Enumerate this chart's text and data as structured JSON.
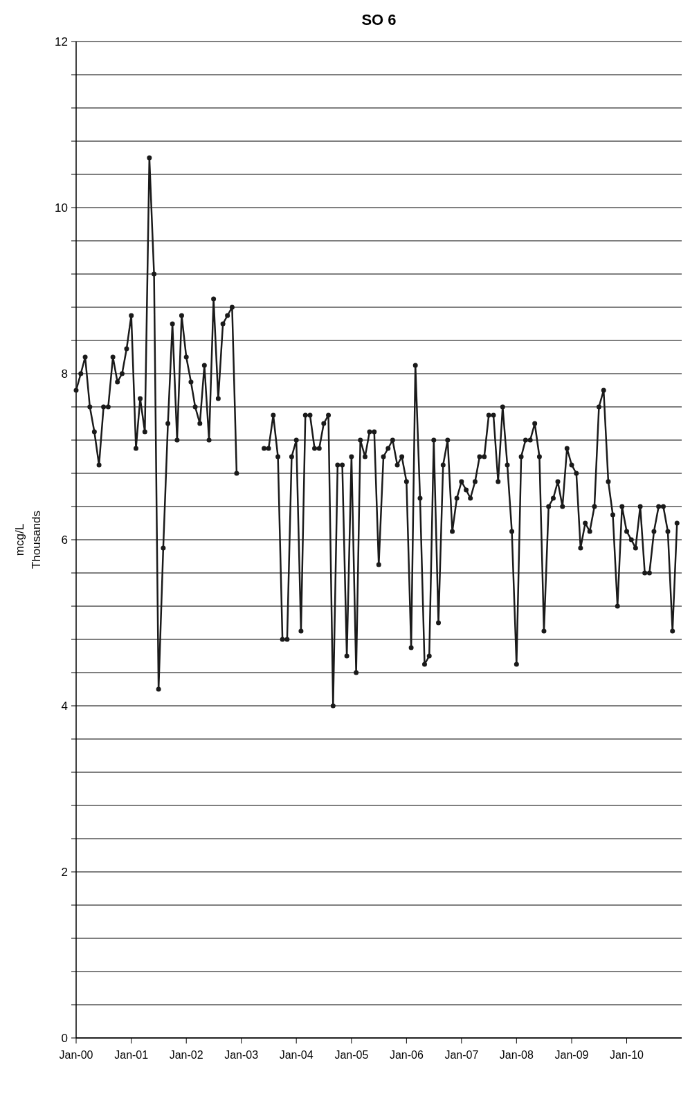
{
  "chart_data": {
    "type": "line",
    "title": "SO 6",
    "ylabel": "mcg/L",
    "annotations": [
      "Thousands"
    ],
    "x": [
      "2000-01",
      "2000-02",
      "2000-03",
      "2000-04",
      "2000-05",
      "2000-06",
      "2000-07",
      "2000-08",
      "2000-09",
      "2000-10",
      "2000-11",
      "2000-12",
      "2001-01",
      "2001-02",
      "2001-03",
      "2001-04",
      "2001-05",
      "2001-06",
      "2001-07",
      "2001-08",
      "2001-09",
      "2001-10",
      "2001-11",
      "2001-12",
      "2002-01",
      "2002-02",
      "2002-03",
      "2002-04",
      "2002-05",
      "2002-06",
      "2002-07",
      "2002-08",
      "2002-09",
      "2002-10",
      "2002-11",
      "2002-12",
      "2003-03",
      "2003-06",
      "2003-07",
      "2003-08",
      "2003-09",
      "2003-10",
      "2003-11",
      "2003-12",
      "2004-01",
      "2004-02",
      "2004-03",
      "2004-04",
      "2004-05",
      "2004-06",
      "2004-07",
      "2004-08",
      "2004-09",
      "2004-10",
      "2004-11",
      "2004-12",
      "2005-01",
      "2005-02",
      "2005-03",
      "2005-04",
      "2005-05",
      "2005-06",
      "2005-07",
      "2005-08",
      "2005-09",
      "2005-10",
      "2005-11",
      "2005-12",
      "2006-01",
      "2006-02",
      "2006-03",
      "2006-04",
      "2006-05",
      "2006-06",
      "2006-07",
      "2006-08",
      "2006-09",
      "2006-10",
      "2006-11",
      "2006-12",
      "2007-01",
      "2007-02",
      "2007-03",
      "2007-04",
      "2007-05",
      "2007-06",
      "2007-07",
      "2007-08",
      "2007-09",
      "2007-10",
      "2007-11",
      "2007-12",
      "2008-01",
      "2008-02",
      "2008-03",
      "2008-04",
      "2008-05",
      "2008-06",
      "2008-07",
      "2008-08",
      "2008-09",
      "2008-10",
      "2008-11",
      "2008-12",
      "2009-01",
      "2009-02",
      "2009-03",
      "2009-04",
      "2009-05",
      "2009-06",
      "2009-07",
      "2009-08",
      "2009-09",
      "2009-10",
      "2009-11",
      "2009-12",
      "2010-01",
      "2010-02",
      "2010-03",
      "2010-04",
      "2010-05",
      "2010-06",
      "2010-07",
      "2010-08",
      "2010-09",
      "2010-10",
      "2010-11",
      "2010-12"
    ],
    "series": [
      {
        "color": "#1a1a1a",
        "values": [
          7.8,
          8.0,
          8.2,
          7.6,
          7.3,
          6.9,
          7.6,
          7.6,
          8.2,
          7.9,
          8.0,
          8.3,
          8.7,
          7.1,
          7.7,
          7.3,
          10.6,
          9.2,
          4.2,
          5.9,
          7.4,
          8.6,
          7.2,
          8.7,
          8.2,
          7.9,
          7.6,
          7.4,
          8.1,
          7.2,
          8.9,
          7.7,
          8.6,
          8.7,
          8.8,
          6.8,
          null,
          7.1,
          7.1,
          7.5,
          7.0,
          4.8,
          4.8,
          7.0,
          7.2,
          4.9,
          7.5,
          7.5,
          7.1,
          7.1,
          7.4,
          7.5,
          4.0,
          6.9,
          6.9,
          4.6,
          7.0,
          4.4,
          7.2,
          7.0,
          7.3,
          7.3,
          5.7,
          7.0,
          7.1,
          7.2,
          6.9,
          7.0,
          6.7,
          4.7,
          8.1,
          6.5,
          4.5,
          4.6,
          7.2,
          5.0,
          6.9,
          7.2,
          6.1,
          6.5,
          6.7,
          6.6,
          6.5,
          6.7,
          7.0,
          7.0,
          7.5,
          7.5,
          6.7,
          7.6,
          6.9,
          6.1,
          4.5,
          7.0,
          7.2,
          7.2,
          7.4,
          7.0,
          4.9,
          6.4,
          6.5,
          6.7,
          6.4,
          7.1,
          6.9,
          6.8,
          5.9,
          6.2,
          6.1,
          6.4,
          7.6,
          7.8,
          6.7,
          6.3,
          5.2,
          6.4,
          6.1,
          6.0,
          5.9,
          6.4,
          5.6,
          5.6,
          6.1,
          6.4,
          6.4,
          6.1,
          4.9,
          6.2
        ]
      }
    ],
    "xlim": [
      "2000-01",
      "2011-01"
    ],
    "xticks": [
      {
        "value": "2000-01",
        "label": "Jan-00"
      },
      {
        "value": "2001-01",
        "label": "Jan-01"
      },
      {
        "value": "2002-01",
        "label": "Jan-02"
      },
      {
        "value": "2003-01",
        "label": "Jan-03"
      },
      {
        "value": "2004-01",
        "label": "Jan-04"
      },
      {
        "value": "2005-01",
        "label": "Jan-05"
      },
      {
        "value": "2006-01",
        "label": "Jan-06"
      },
      {
        "value": "2007-01",
        "label": "Jan-07"
      },
      {
        "value": "2008-01",
        "label": "Jan-08"
      },
      {
        "value": "2009-01",
        "label": "Jan-09"
      },
      {
        "value": "2010-01",
        "label": "Jan-10"
      }
    ],
    "ylim": [
      0,
      12
    ],
    "yticks": [
      0,
      {
        "value": 0.4,
        "label": null
      },
      {
        "value": 0.8,
        "label": null
      },
      {
        "value": 1.2,
        "label": null
      },
      {
        "value": 1.6,
        "label": null
      },
      2,
      {
        "value": 2.4,
        "label": null
      },
      {
        "value": 2.8,
        "label": null
      },
      {
        "value": 3.2,
        "label": null
      },
      {
        "value": 3.6,
        "label": null
      },
      4,
      {
        "value": 4.4,
        "label": null
      },
      {
        "value": 4.8,
        "label": null
      },
      {
        "value": 5.2,
        "label": null
      },
      {
        "value": 5.6,
        "label": null
      },
      6,
      {
        "value": 6.4,
        "label": null
      },
      {
        "value": 6.8,
        "label": null
      },
      {
        "value": 7.2,
        "label": null
      },
      {
        "value": 7.6,
        "label": null
      },
      8,
      {
        "value": 8.4,
        "label": null
      },
      {
        "value": 8.8,
        "label": null
      },
      {
        "value": 9.2,
        "label": null
      },
      {
        "value": 9.6,
        "label": null
      },
      10,
      {
        "value": 10.4,
        "label": null
      },
      {
        "value": 10.8,
        "label": null
      },
      {
        "value": 11.2,
        "label": null
      },
      {
        "value": 11.6,
        "label": null
      },
      12
    ],
    "grid": "y",
    "marker": "circle",
    "line_style": "solid"
  }
}
